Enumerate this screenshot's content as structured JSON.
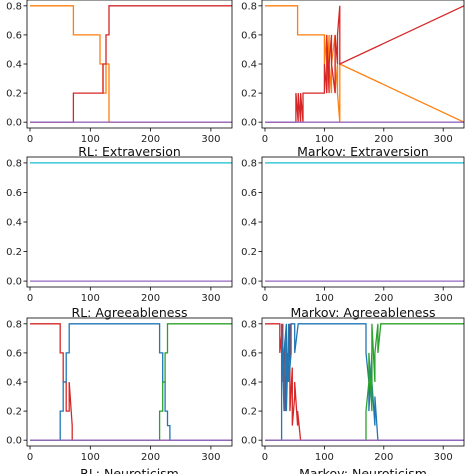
{
  "colors": {
    "blue": "#1f77b4",
    "orange": "#ff7f0e",
    "green": "#2ca02c",
    "red": "#d62728",
    "purple": "#9467bd"
  },
  "chart_data": [
    {
      "type": "line",
      "title": "",
      "xlim": [
        -5,
        335
      ],
      "ylim": [
        -0.04,
        0.84
      ],
      "xticks": [
        "0",
        "100",
        "200",
        "300"
      ],
      "yticks": [
        "0.0",
        "0.2",
        "0.4",
        "0.6",
        "0.8"
      ],
      "series": [
        {
          "color": "#ff7f0e",
          "x": [
            0,
            72,
            72,
            100,
            100,
            116,
            116,
            121,
            121,
            126,
            126,
            131,
            131,
            335
          ],
          "y": [
            0.8,
            0.8,
            0.6,
            0.6,
            0.6,
            0.6,
            0.4,
            0.4,
            0.2,
            0.2,
            0.4,
            0.4,
            0,
            0
          ]
        },
        {
          "color": "#d62728",
          "x": [
            0,
            72,
            72,
            116,
            116,
            121,
            121,
            126,
            126,
            131,
            131,
            335
          ],
          "y": [
            0,
            0,
            0.2,
            0.2,
            0.2,
            0.2,
            0.4,
            0.4,
            0.6,
            0.6,
            0.8,
            0.8
          ]
        },
        {
          "color": "#9467bd",
          "x": [
            0,
            335
          ],
          "y": [
            0,
            0
          ]
        }
      ]
    },
    {
      "type": "line",
      "title": "",
      "xlim": [
        -5,
        335
      ],
      "ylim": [
        -0.04,
        0.84
      ],
      "xticks": [
        "0",
        "100",
        "200",
        "300"
      ],
      "yticks": [
        "0.0",
        "0.2",
        "0.4",
        "0.6",
        "0.8"
      ],
      "series": [
        {
          "color": "#ff7f0e",
          "x": [
            0,
            55,
            55,
            60,
            60,
            100,
            100,
            104,
            104,
            108,
            108,
            112,
            112,
            118,
            118,
            122,
            122,
            126,
            126,
            335
          ],
          "y": [
            0.8,
            0.8,
            0.6,
            0.6,
            0.6,
            0.6,
            0.4,
            0.6,
            0.2,
            0.6,
            0.4,
            0.2,
            0.4,
            0.6,
            0.2,
            0.4,
            0.2,
            0.0,
            0.4,
            0.0
          ]
        },
        {
          "color": "#d62728",
          "x": [
            0,
            52,
            52,
            56,
            56,
            60,
            60,
            64,
            64,
            100,
            100,
            104,
            104,
            108,
            108,
            112,
            112,
            118,
            118,
            122,
            122,
            126,
            126,
            335
          ],
          "y": [
            0,
            0,
            0.2,
            0,
            0.2,
            0,
            0.2,
            0,
            0.2,
            0.2,
            0.4,
            0.2,
            0.6,
            0.2,
            0.4,
            0.6,
            0.4,
            0.2,
            0.6,
            0.4,
            0.6,
            0.8,
            0.4,
            0.8
          ]
        },
        {
          "color": "#9467bd",
          "x": [
            0,
            335
          ],
          "y": [
            0,
            0
          ]
        }
      ]
    },
    {
      "type": "line",
      "title": "RL: Extraversion",
      "xlim": [
        -5,
        335
      ],
      "ylim": [
        -0.04,
        0.84
      ],
      "xticks": [
        "0",
        "100",
        "200",
        "300"
      ],
      "yticks": [
        "0.0",
        "0.2",
        "0.4",
        "0.6",
        "0.8"
      ],
      "series": [
        {
          "color": "#17becf",
          "x": [
            0,
            335
          ],
          "y": [
            0.8,
            0.8
          ]
        },
        {
          "color": "#9467bd",
          "x": [
            0,
            335
          ],
          "y": [
            0,
            0
          ]
        }
      ]
    },
    {
      "type": "line",
      "title": "Markov: Extraversion",
      "xlim": [
        -5,
        335
      ],
      "ylim": [
        -0.04,
        0.84
      ],
      "xticks": [
        "0",
        "100",
        "200",
        "300"
      ],
      "yticks": [
        "0.0",
        "0.2",
        "0.4",
        "0.6",
        "0.8"
      ],
      "series": [
        {
          "color": "#17becf",
          "x": [
            0,
            335
          ],
          "y": [
            0.8,
            0.8
          ]
        },
        {
          "color": "#9467bd",
          "x": [
            0,
            335
          ],
          "y": [
            0,
            0
          ]
        }
      ]
    },
    {
      "type": "line",
      "title": "RL: Agreeableness",
      "xlim": [
        -5,
        335
      ],
      "ylim": [
        -0.04,
        0.84
      ],
      "xticks": [
        "0",
        "100",
        "200",
        "300"
      ],
      "yticks": [
        "0.0",
        "0.2",
        "0.4",
        "0.6",
        "0.8"
      ],
      "series": [
        {
          "color": "#d62728",
          "x": [
            0,
            50,
            50,
            55,
            55,
            60,
            60,
            65,
            65,
            70,
            70,
            335
          ],
          "y": [
            0.8,
            0.8,
            0.6,
            0.6,
            0.4,
            0.4,
            0.2,
            0.2,
            0.4,
            0.1,
            0,
            0
          ]
        },
        {
          "color": "#1f77b4",
          "x": [
            0,
            50,
            50,
            55,
            55,
            60,
            60,
            65,
            65,
            72,
            72,
            215,
            215,
            220,
            220,
            224,
            224,
            228,
            228,
            232,
            232,
            335
          ],
          "y": [
            0,
            0,
            0.2,
            0.2,
            0.4,
            0.4,
            0.6,
            0.6,
            0.8,
            0.8,
            0.8,
            0.8,
            0.6,
            0.6,
            0.4,
            0.4,
            0.2,
            0.2,
            0.1,
            0.1,
            0,
            0
          ]
        },
        {
          "color": "#2ca02c",
          "x": [
            0,
            215,
            215,
            220,
            220,
            224,
            224,
            228,
            228,
            232,
            232,
            335
          ],
          "y": [
            0,
            0,
            0.2,
            0.2,
            0.4,
            0.4,
            0.6,
            0.6,
            0.8,
            0.8,
            0.8,
            0.8
          ]
        },
        {
          "color": "#9467bd",
          "x": [
            0,
            335
          ],
          "y": [
            0,
            0
          ]
        }
      ]
    },
    {
      "type": "line",
      "title": "Markov: Agreeableness",
      "xlim": [
        -5,
        335
      ],
      "ylim": [
        -0.04,
        0.84
      ],
      "xticks": [
        "0",
        "100",
        "200",
        "300"
      ],
      "yticks": [
        "0.0",
        "0.2",
        "0.4",
        "0.6",
        "0.8"
      ],
      "series": [
        {
          "color": "#d62728",
          "x": [
            0,
            25,
            25,
            30,
            30,
            34,
            34,
            38,
            38,
            42,
            42,
            46,
            46,
            50,
            50,
            55,
            55,
            60,
            60,
            335
          ],
          "y": [
            0.8,
            0.8,
            0.6,
            0.8,
            0.4,
            0.7,
            0.2,
            0.6,
            0.4,
            0.8,
            0.2,
            0.5,
            0.1,
            0.3,
            0.4,
            0.1,
            0.2,
            0,
            0,
            0
          ]
        },
        {
          "color": "#1f77b4",
          "x": [
            0,
            28,
            28,
            32,
            32,
            36,
            36,
            40,
            40,
            44,
            44,
            50,
            50,
            56,
            56,
            62,
            62,
            170,
            170,
            175,
            175,
            180,
            180,
            185,
            185,
            190,
            190,
            335
          ],
          "y": [
            0,
            0,
            0.8,
            0.2,
            0.6,
            0.8,
            0.2,
            0.8,
            0.4,
            0.6,
            0.8,
            0.8,
            0.6,
            0.8,
            0.8,
            0.8,
            0.8,
            0.8,
            0.6,
            0.4,
            0.2,
            0.6,
            0.4,
            0.1,
            0.3,
            0,
            0,
            0
          ]
        },
        {
          "color": "#2ca02c",
          "x": [
            0,
            170,
            170,
            175,
            175,
            180,
            180,
            185,
            185,
            190,
            190,
            195,
            195,
            335
          ],
          "y": [
            0,
            0,
            0.2,
            0.4,
            0.6,
            0.2,
            0.8,
            0.4,
            0.6,
            0.8,
            0.6,
            0.8,
            0.8,
            0.8
          ]
        },
        {
          "color": "#9467bd",
          "x": [
            0,
            335
          ],
          "y": [
            0,
            0
          ]
        }
      ]
    }
  ],
  "bottom_titles": [
    "RL: Neuroticism",
    "Markov: Neuroticism"
  ]
}
